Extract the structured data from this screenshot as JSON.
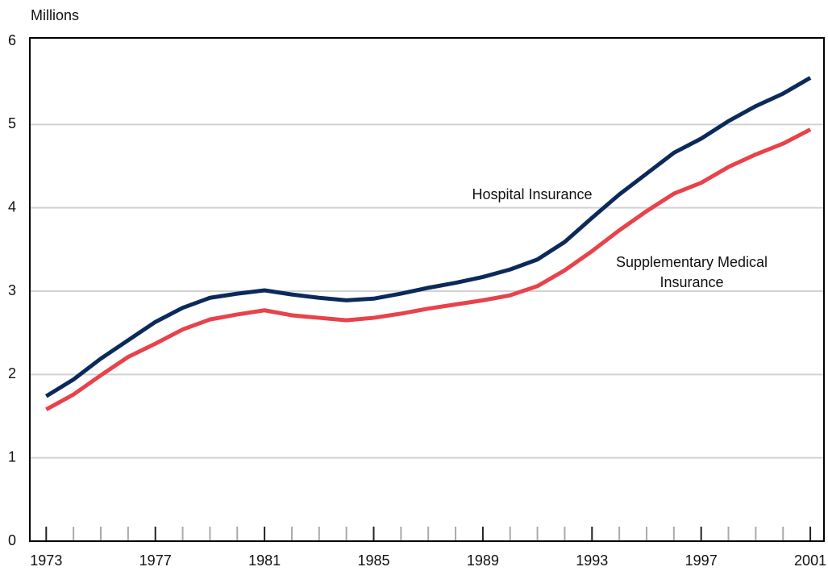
{
  "chart_data": {
    "type": "line",
    "y_label": "Millions",
    "x": [
      1973,
      1974,
      1975,
      1976,
      1977,
      1978,
      1979,
      1980,
      1981,
      1982,
      1983,
      1984,
      1985,
      1986,
      1987,
      1988,
      1989,
      1990,
      1991,
      1992,
      1993,
      1994,
      1995,
      1996,
      1997,
      1998,
      1999,
      2000,
      2001
    ],
    "series": [
      {
        "name": "Hospital Insurance",
        "color": "#0b2a5a",
        "values": [
          1.74,
          1.94,
          2.19,
          2.41,
          2.63,
          2.8,
          2.92,
          2.97,
          3.01,
          2.96,
          2.92,
          2.89,
          2.91,
          2.97,
          3.04,
          3.1,
          3.17,
          3.26,
          3.38,
          3.59,
          3.88,
          4.16,
          4.41,
          4.66,
          4.83,
          5.04,
          5.22,
          5.37,
          5.56
        ]
      },
      {
        "name": "Supplementary Medical Insurance",
        "color": "#e8424a",
        "values": [
          1.58,
          1.76,
          1.99,
          2.21,
          2.37,
          2.54,
          2.66,
          2.72,
          2.77,
          2.71,
          2.68,
          2.65,
          2.68,
          2.73,
          2.79,
          2.84,
          2.89,
          2.95,
          3.06,
          3.25,
          3.48,
          3.73,
          3.96,
          4.17,
          4.3,
          4.49,
          4.64,
          4.77,
          4.94
        ]
      }
    ],
    "xlim": [
      1972.4,
      2001.5
    ],
    "ylim": [
      0,
      6
    ],
    "xticks": [
      1973,
      1977,
      1981,
      1985,
      1989,
      1993,
      1997,
      2001
    ],
    "yticks": [
      0,
      1,
      2,
      3,
      4,
      5,
      6
    ],
    "grid": true
  }
}
